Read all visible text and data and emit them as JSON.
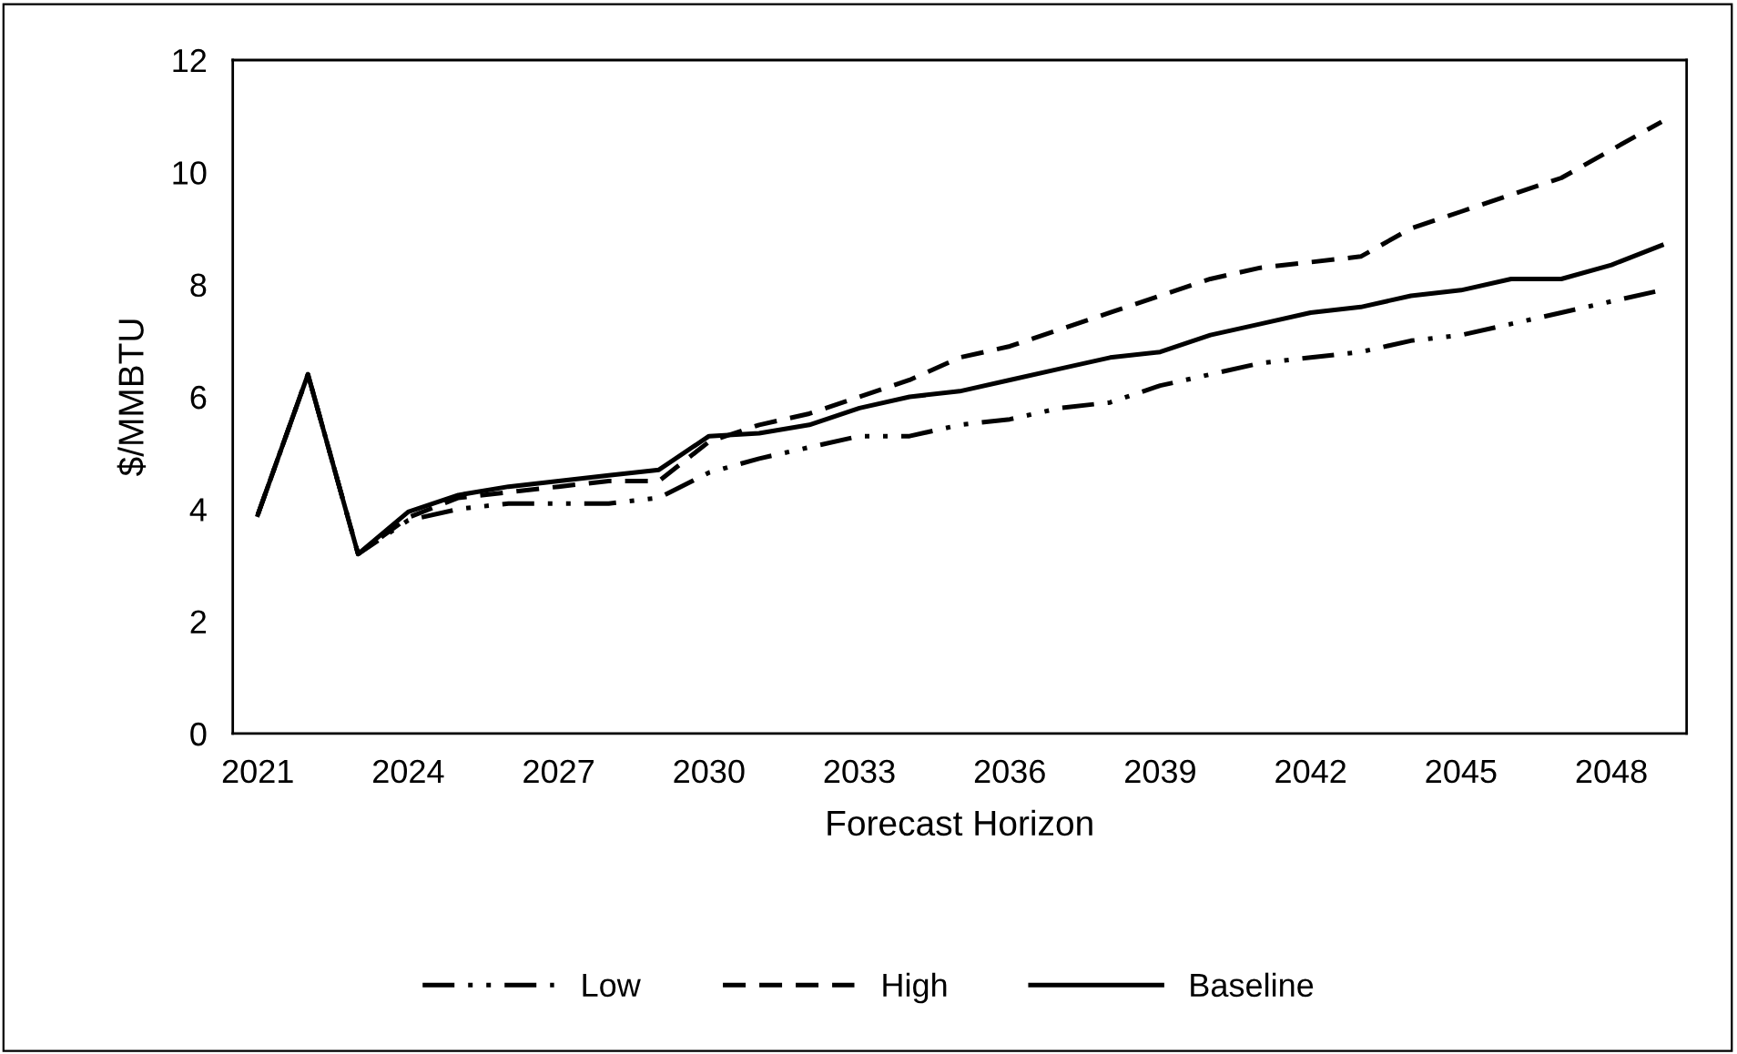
{
  "chart_data": {
    "type": "line",
    "xlabel": "Forecast Horizon",
    "ylabel": "$/MMBTU",
    "x": [
      2021,
      2022,
      2023,
      2024,
      2025,
      2026,
      2027,
      2028,
      2029,
      2030,
      2031,
      2032,
      2033,
      2034,
      2035,
      2036,
      2037,
      2038,
      2039,
      2040,
      2041,
      2042,
      2043,
      2044,
      2045,
      2046,
      2047,
      2048,
      2049
    ],
    "series": [
      {
        "name": "Low",
        "color": "#000000",
        "line_style": "dashdot",
        "values": [
          3.9,
          6.4,
          3.2,
          3.8,
          4.0,
          4.1,
          4.1,
          4.1,
          4.2,
          4.65,
          4.9,
          5.1,
          5.3,
          5.3,
          5.5,
          5.6,
          5.8,
          5.9,
          6.2,
          6.4,
          6.6,
          6.7,
          6.8,
          7.0,
          7.1,
          7.3,
          7.5,
          7.7,
          7.9
        ]
      },
      {
        "name": "High",
        "color": "#000000",
        "line_style": "dashed",
        "values": [
          3.9,
          6.4,
          3.2,
          3.85,
          4.2,
          4.3,
          4.4,
          4.5,
          4.5,
          5.2,
          5.5,
          5.7,
          6.0,
          6.3,
          6.7,
          6.9,
          7.2,
          7.5,
          7.8,
          8.1,
          8.3,
          8.4,
          8.5,
          9.0,
          9.3,
          9.6,
          9.9,
          10.4,
          10.9
        ]
      },
      {
        "name": "Baseline",
        "color": "#000000",
        "line_style": "solid",
        "values": [
          3.9,
          6.4,
          3.2,
          3.95,
          4.25,
          4.4,
          4.5,
          4.6,
          4.7,
          5.3,
          5.35,
          5.5,
          5.8,
          6.0,
          6.1,
          6.3,
          6.5,
          6.7,
          6.8,
          7.1,
          7.3,
          7.5,
          7.6,
          7.8,
          7.9,
          8.1,
          8.1,
          8.35,
          8.7
        ]
      }
    ],
    "xlim": [
      2020.5,
      2049.5
    ],
    "xticks": [
      2021,
      2024,
      2027,
      2030,
      2033,
      2036,
      2039,
      2042,
      2045,
      2048
    ],
    "ylim": [
      0,
      12
    ],
    "yticks": [
      0,
      2,
      4,
      6,
      8,
      10,
      12
    ],
    "grid": false,
    "legend": "bottom"
  }
}
